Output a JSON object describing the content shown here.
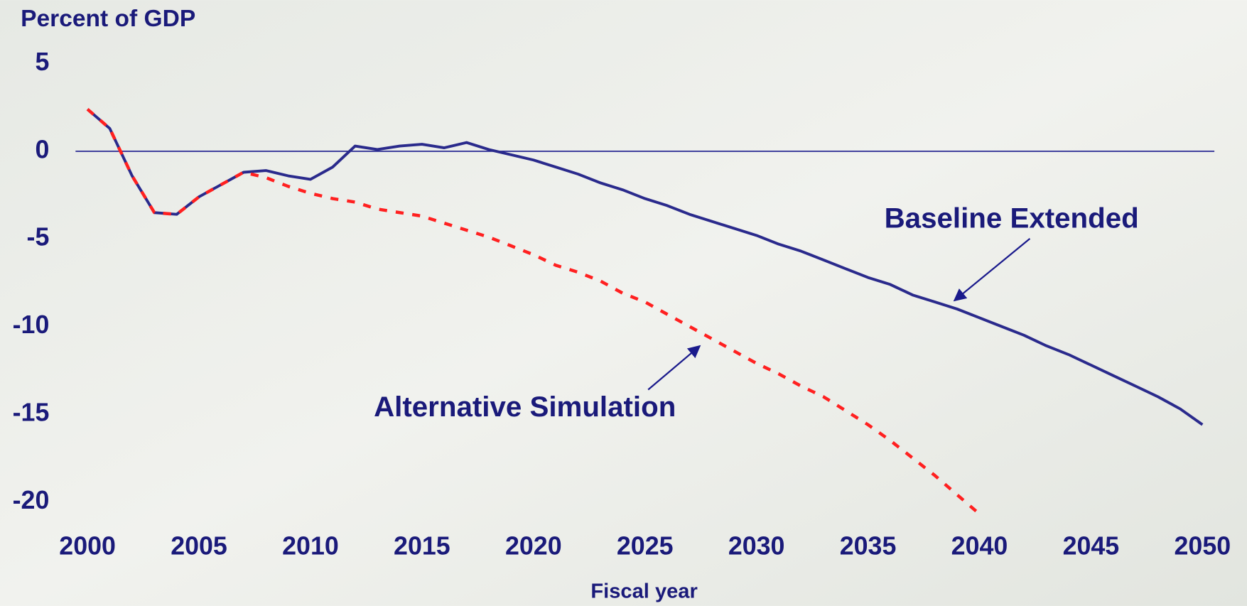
{
  "chart_data": {
    "type": "line",
    "y_label": "Percent of GDP",
    "x_label": "Fiscal year",
    "x": [
      2000,
      2001,
      2002,
      2003,
      2004,
      2005,
      2006,
      2007,
      2008,
      2009,
      2010,
      2011,
      2012,
      2013,
      2014,
      2015,
      2016,
      2017,
      2018,
      2019,
      2020,
      2021,
      2022,
      2023,
      2024,
      2025,
      2026,
      2027,
      2028,
      2029,
      2030,
      2031,
      2032,
      2033,
      2034,
      2035,
      2036,
      2037,
      2038,
      2039,
      2040,
      2041,
      2042,
      2043,
      2044,
      2045,
      2046,
      2047,
      2048,
      2049,
      2050
    ],
    "series": [
      {
        "name": "Baseline Extended",
        "color": "#2a2a8c",
        "dashed": false,
        "values": [
          2.4,
          1.3,
          -1.4,
          -3.5,
          -3.6,
          -2.6,
          -1.9,
          -1.2,
          -1.1,
          -1.4,
          -1.6,
          -0.9,
          0.3,
          0.1,
          0.3,
          0.4,
          0.2,
          0.5,
          0.1,
          -0.2,
          -0.5,
          -0.9,
          -1.3,
          -1.8,
          -2.2,
          -2.7,
          -3.1,
          -3.6,
          -4.0,
          -4.4,
          -4.8,
          -5.3,
          -5.7,
          -6.2,
          -6.7,
          -7.2,
          -7.6,
          -8.2,
          -8.6,
          -9.0,
          -9.5,
          -10.0,
          -10.5,
          -11.1,
          -11.6,
          -12.2,
          -12.8,
          -13.4,
          -14.0,
          -14.7,
          -15.6
        ]
      },
      {
        "name": "Alternative Simulation",
        "color": "#ff2020",
        "dashed": true,
        "values": [
          2.4,
          1.3,
          -1.4,
          -3.5,
          -3.6,
          -2.6,
          -1.9,
          -1.2,
          -1.5,
          -2.0,
          -2.4,
          -2.7,
          -2.9,
          -3.3,
          -3.5,
          -3.7,
          -4.1,
          -4.5,
          -4.9,
          -5.4,
          -5.9,
          -6.5,
          -6.9,
          -7.4,
          -8.1,
          -8.6,
          -9.3,
          -10.0,
          -10.7,
          -11.4,
          -12.1,
          -12.7,
          -13.4,
          -14.0,
          -14.8,
          -15.6,
          -16.5,
          -17.5,
          -18.5,
          -19.6,
          -20.7,
          null,
          null,
          null,
          null,
          null,
          null,
          null,
          null,
          null,
          null
        ]
      }
    ],
    "xlim": [
      2000,
      2050
    ],
    "xticks": [
      2000,
      2005,
      2010,
      2015,
      2020,
      2025,
      2030,
      2035,
      2040,
      2045,
      2050
    ],
    "ylim": [
      -20,
      5
    ],
    "yticks": [
      5,
      0,
      -5,
      -10,
      -15,
      -20
    ]
  }
}
